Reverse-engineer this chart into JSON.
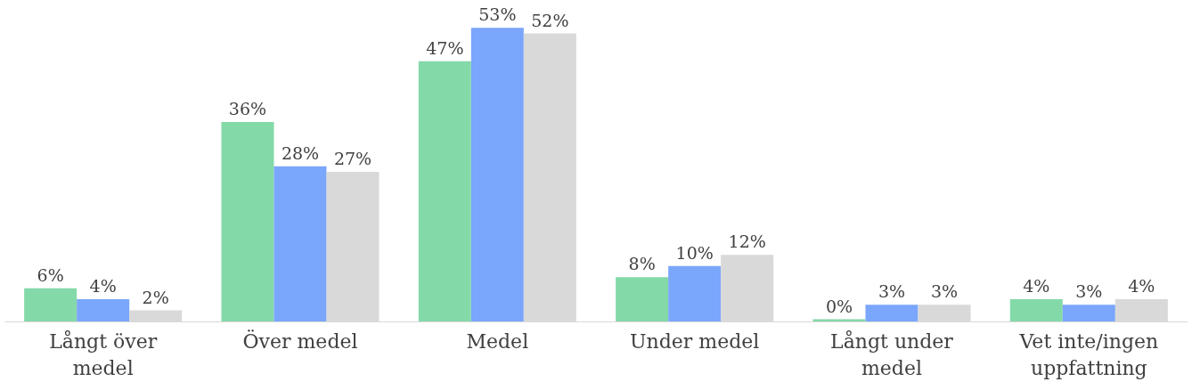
{
  "chart_data": {
    "type": "bar",
    "categories": [
      "Långt över medel",
      "Över medel",
      "Medel",
      "Under medel",
      "Långt under medel",
      "Vet inte/ingen uppfattning"
    ],
    "series": [
      {
        "color": "#84d9a9",
        "values": [
          6,
          36,
          47,
          8,
          0.4,
          4
        ],
        "value_labels": [
          "6%",
          "36%",
          "47%",
          "8%",
          "0%",
          "4%"
        ]
      },
      {
        "color": "#7aa6fb",
        "values": [
          4,
          28,
          53,
          10,
          3,
          3
        ],
        "value_labels": [
          "4%",
          "28%",
          "53%",
          "10%",
          "3%",
          "3%"
        ]
      },
      {
        "color": "#d9d9d9",
        "values": [
          2,
          27,
          52,
          12,
          3,
          4
        ],
        "value_labels": [
          "2%",
          "27%",
          "52%",
          "12%",
          "3%",
          "4%"
        ]
      }
    ],
    "grid": false,
    "legend": false
  }
}
